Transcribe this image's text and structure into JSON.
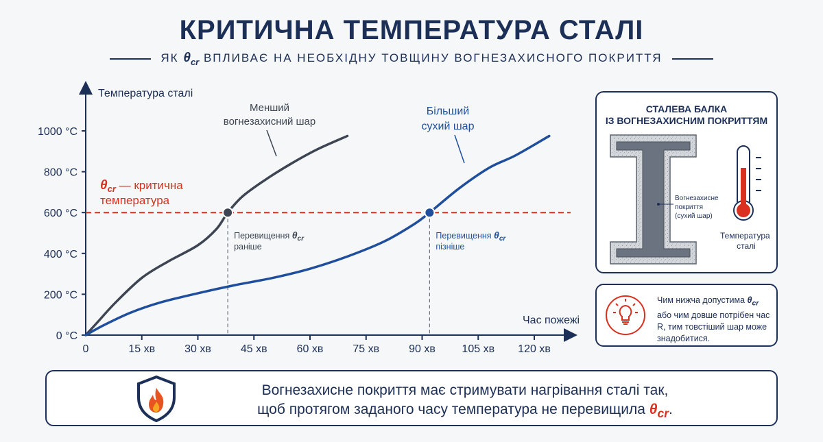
{
  "header": {
    "title": "КРИТИЧНА ТЕМПЕРАТУРА СТАЛІ",
    "subtitle_pre": "ЯК",
    "subtitle_symbol": "θ",
    "subtitle_symbol_sub": "cr",
    "subtitle_post": "ВПЛИВАЄ НА НЕОБХІДНУ ТОВЩИНУ ВОГНЕЗАХИСНОГО ПОКРИТТЯ"
  },
  "chart_data": {
    "type": "line",
    "ylabel": "Температура сталі",
    "xlabel": "Час пожежі",
    "x_ticks": [
      0,
      15,
      30,
      45,
      60,
      75,
      90,
      105,
      120
    ],
    "x_tick_labels": [
      "0",
      "15 хв",
      "30 хв",
      "45 хв",
      "60 хв",
      "75 хв",
      "90 хв",
      "105 хв",
      "120 хв"
    ],
    "y_ticks": [
      0,
      200,
      400,
      600,
      800,
      1000
    ],
    "y_tick_labels": [
      "0 °C",
      "200 °C",
      "400 °C",
      "600 °C",
      "800 °C",
      "1000 °C"
    ],
    "xlim": [
      0,
      130
    ],
    "ylim": [
      0,
      1100
    ],
    "series": [
      {
        "name": "Менший вогнезахисний шар",
        "color": "#3d4552",
        "points": [
          [
            0,
            0
          ],
          [
            3,
            60
          ],
          [
            8,
            160
          ],
          [
            15,
            280
          ],
          [
            22,
            360
          ],
          [
            30,
            440
          ],
          [
            35,
            520
          ],
          [
            38,
            600
          ],
          [
            42,
            680
          ],
          [
            48,
            760
          ],
          [
            55,
            840
          ],
          [
            62,
            910
          ],
          [
            70,
            975
          ]
        ]
      },
      {
        "name": "Більший сухий шар",
        "color": "#1f4f9c",
        "points": [
          [
            0,
            0
          ],
          [
            5,
            50
          ],
          [
            12,
            110
          ],
          [
            20,
            160
          ],
          [
            30,
            205
          ],
          [
            40,
            245
          ],
          [
            50,
            280
          ],
          [
            60,
            325
          ],
          [
            70,
            385
          ],
          [
            80,
            460
          ],
          [
            88,
            545
          ],
          [
            92,
            600
          ],
          [
            100,
            720
          ],
          [
            108,
            820
          ],
          [
            115,
            880
          ],
          [
            124,
            975
          ]
        ]
      }
    ],
    "threshold": {
      "value": 600,
      "label_symbol": "θ",
      "label_sub": "cr",
      "label_text": " — критична",
      "label_text2": "температура",
      "color": "#d9301f"
    },
    "crossings": [
      {
        "x": 38,
        "y": 600,
        "label": "Перевищення",
        "symbol": "θ",
        "sub": "cr",
        "label2": "раніше",
        "color": "#3d4552"
      },
      {
        "x": 92,
        "y": 600,
        "label": "Перевищення",
        "symbol": "θ",
        "sub": "cr",
        "label2": "пізніше",
        "color": "#1f4f9c"
      }
    ],
    "annotations": [
      {
        "line1": "Менший",
        "line2": "вогнезахисний шар",
        "color": "#3d4552"
      },
      {
        "line1": "Більший",
        "line2": "сухий шар",
        "color": "#1f4f9c"
      }
    ]
  },
  "beam_panel": {
    "title_line1": "СТАЛЕВА БАЛКА",
    "title_line2": "ІЗ ВОГНЕЗАХИСНИМ ПОКРИТТЯМ",
    "coating_label_1": "Вогнезахисне",
    "coating_label_2": "покриття",
    "coating_label_3": "(сухий шар)",
    "thermometer_label_1": "Температура",
    "thermometer_label_2": "сталі",
    "colors": {
      "steel": "#6b7380",
      "coating": "#cfd2d6",
      "thermo_red": "#d9301f"
    }
  },
  "tip_panel": {
    "icon": "lightbulb-icon",
    "text_pre": "Чим нижча допустима ",
    "symbol": "θ",
    "sub": "cr",
    "text_post": " або чим довше потрібен час R, тим товстіший шар може знадобитися."
  },
  "bottom_panel": {
    "icon": "fire-shield-icon",
    "line1": "Вогнезахисне покриття має стримувати нагрівання сталі так,",
    "line2_pre": "щоб протягом заданого часу температура не перевищила ",
    "symbol": "θ",
    "sub": "cr",
    "line2_post": "."
  },
  "colors": {
    "navy": "#1c2f57",
    "red": "#d9301f",
    "blue": "#1f4f9c",
    "dark": "#3d4552"
  }
}
